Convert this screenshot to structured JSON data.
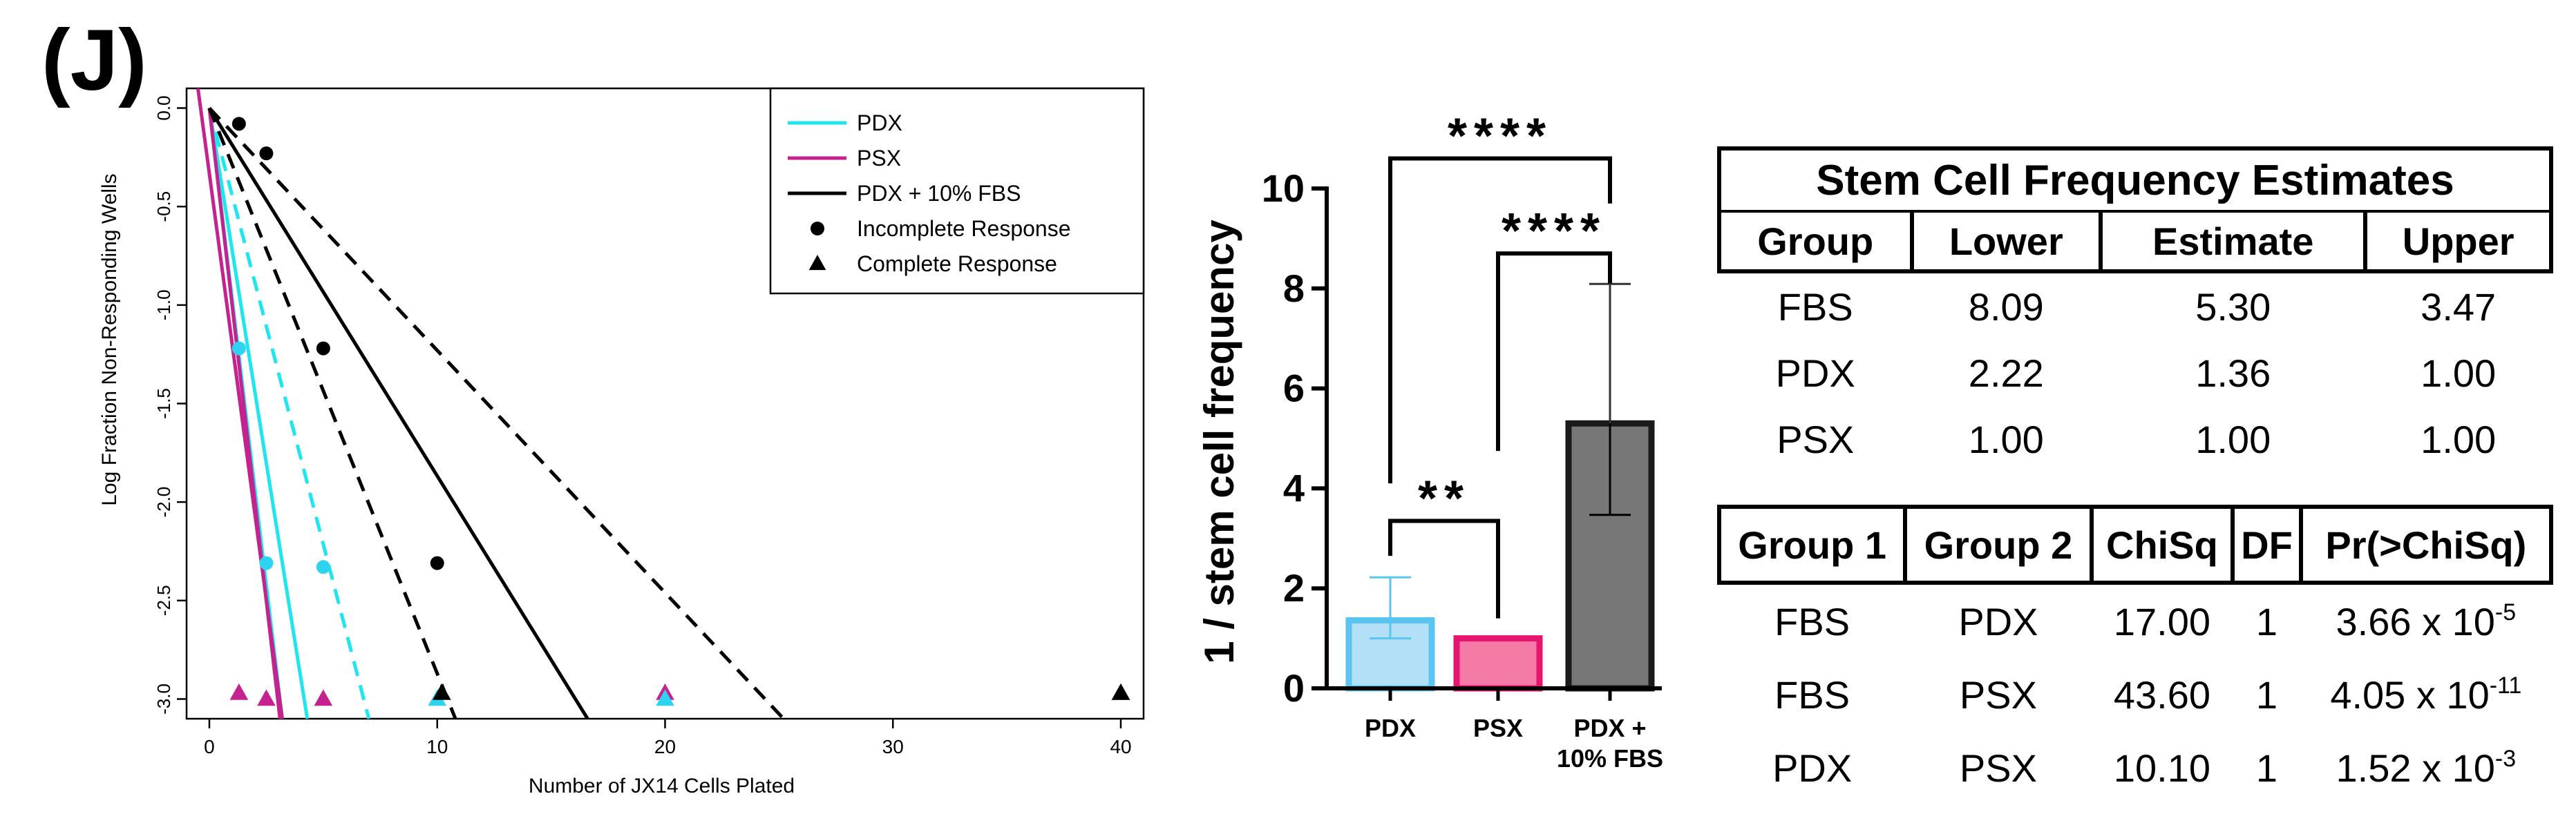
{
  "panel_label": "(J)",
  "chart_data": [
    {
      "type": "scatter",
      "title": "",
      "xlabel": "Number of JX14 Cells Plated",
      "ylabel": "Log Fraction Non-Responding Wells",
      "xlim": [
        -1,
        41
      ],
      "ylim": [
        -3.1,
        0.1
      ],
      "xticks": [
        0,
        10,
        20,
        30,
        40
      ],
      "xtick_labels": [
        "0",
        "10",
        "20",
        "30",
        "40"
      ],
      "yticks": [
        0.0,
        -0.5,
        -1.0,
        -1.5,
        -2.0,
        -2.5,
        -3.0
      ],
      "ytick_labels": [
        "0.0",
        "-0.5",
        "-1.0",
        "-1.5",
        "-2.0",
        "-2.5",
        "-3.0"
      ],
      "legend": [
        {
          "label": "PDX",
          "kind": "line",
          "color": "#1ee5ee"
        },
        {
          "label": "PSX",
          "kind": "line",
          "color": "#c4228f"
        },
        {
          "label": "PDX + 10% FBS",
          "kind": "line",
          "color": "#000000"
        },
        {
          "label": "Incomplete Response",
          "kind": "circle",
          "color": "#000000"
        },
        {
          "label": "Complete Response",
          "kind": "triangle",
          "color": "#000000"
        }
      ],
      "legend_position": "top-right",
      "lines": [
        {
          "name": "PDX estimate",
          "color": "#1ee5ee",
          "style": "solid",
          "x": [
            0,
            4.3
          ],
          "y": [
            0,
            -3.1
          ]
        },
        {
          "name": "PDX bound",
          "color": "#1ee5ee",
          "style": "solid",
          "x": [
            0,
            3.2
          ],
          "y": [
            0,
            -3.1
          ]
        },
        {
          "name": "PDX bound",
          "color": "#1ee5ee",
          "style": "dashed",
          "x": [
            0,
            7.0
          ],
          "y": [
            0,
            -3.1
          ]
        },
        {
          "name": "PSX estimate",
          "color": "#c4228f",
          "style": "solid",
          "x": [
            0,
            3.1
          ],
          "y": [
            0,
            -3.1
          ]
        },
        {
          "name": "PSX bound",
          "color": "#c4228f",
          "style": "solid",
          "x": [
            -0.5,
            3.2
          ],
          "y": [
            0.1,
            -3.1
          ]
        },
        {
          "name": "PDX + 10% FBS estimate",
          "color": "#000000",
          "style": "solid",
          "x": [
            0,
            16.6
          ],
          "y": [
            0,
            -3.1
          ]
        },
        {
          "name": "PDX + 10% FBS bound",
          "color": "#000000",
          "style": "dashed",
          "x": [
            0,
            25.2
          ],
          "y": [
            0,
            -3.1
          ]
        },
        {
          "name": "PDX + 10% FBS bound",
          "color": "#000000",
          "style": "dashed",
          "x": [
            0,
            10.8
          ],
          "y": [
            0,
            -3.1
          ]
        }
      ],
      "points": [
        {
          "series": "PDX + 10% FBS",
          "shape": "circle",
          "color": "#000000",
          "x": 1.3,
          "y": -0.08
        },
        {
          "series": "PDX + 10% FBS",
          "shape": "circle",
          "color": "#000000",
          "x": 2.5,
          "y": -0.23
        },
        {
          "series": "PDX + 10% FBS",
          "shape": "circle",
          "color": "#000000",
          "x": 5.0,
          "y": -1.22
        },
        {
          "series": "PDX + 10% FBS",
          "shape": "circle",
          "color": "#000000",
          "x": 10.0,
          "y": -2.31
        },
        {
          "series": "PDX",
          "shape": "circle",
          "color": "#2ed3f0",
          "x": 1.3,
          "y": -1.22
        },
        {
          "series": "PDX",
          "shape": "circle",
          "color": "#2ed3f0",
          "x": 2.5,
          "y": -2.31
        },
        {
          "series": "PDX",
          "shape": "circle",
          "color": "#2ed3f0",
          "x": 5.0,
          "y": -2.33
        },
        {
          "series": "PSX",
          "shape": "triangle",
          "color": "#c4228f",
          "x": 1.3,
          "y": -2.97
        },
        {
          "series": "PSX",
          "shape": "triangle",
          "color": "#c4228f",
          "x": 2.5,
          "y": -3.0
        },
        {
          "series": "PSX",
          "shape": "triangle",
          "color": "#c4228f",
          "x": 5.0,
          "y": -3.0
        },
        {
          "series": "PDX",
          "shape": "triangle",
          "color": "#2ed3f0",
          "x": 10.0,
          "y": -3.0
        },
        {
          "series": "PDX + 10% FBS",
          "shape": "triangle",
          "color": "#000000",
          "x": 10.2,
          "y": -2.97
        },
        {
          "series": "PSX",
          "shape": "triangle",
          "color": "#c4228f",
          "x": 20.0,
          "y": -2.97
        },
        {
          "series": "PDX",
          "shape": "triangle",
          "color": "#2ed3f0",
          "x": 20.0,
          "y": -3.0
        },
        {
          "series": "PSX",
          "shape": "triangle",
          "color": "#c4228f",
          "x": 40.0,
          "y": -2.97
        },
        {
          "series": "PDX + 10% FBS",
          "shape": "triangle",
          "color": "#000000",
          "x": 40.0,
          "y": -2.97
        }
      ]
    },
    {
      "type": "bar",
      "title": "",
      "xlabel": "",
      "ylabel": "1 / stem cell frequency",
      "ylim": [
        0,
        10
      ],
      "yticks": [
        0,
        2,
        4,
        6,
        8,
        10
      ],
      "ytick_labels": [
        "0",
        "2",
        "4",
        "6",
        "8",
        "10"
      ],
      "categories": [
        "PDX",
        "PSX",
        "PDX + 10% FBS"
      ],
      "category_labels": [
        [
          "PDX"
        ],
        [
          "PSX"
        ],
        [
          "PDX +",
          "10% FBS"
        ]
      ],
      "values": [
        1.36,
        1.0,
        5.3
      ],
      "error_low": [
        1.0,
        1.0,
        3.47
      ],
      "error_high": [
        2.22,
        1.0,
        8.09
      ],
      "fill_colors": [
        "#b3e0f7",
        "#f47ba6",
        "#777777"
      ],
      "edge_colors": [
        "#5bc5f2",
        "#e8156e",
        "#1a1a1a"
      ],
      "significance": [
        {
          "from": 0,
          "to": 2,
          "label": "****",
          "y": 10.6
        },
        {
          "from": 1,
          "to": 2,
          "label": "****",
          "y": 8.7
        },
        {
          "from": 0,
          "to": 1,
          "label": "**",
          "y": 3.35
        }
      ]
    }
  ],
  "stem_cell_table": {
    "title": "Stem Cell Frequency Estimates",
    "headers": [
      "Group",
      "Lower",
      "Estimate",
      "Upper"
    ],
    "rows": [
      [
        "FBS",
        "8.09",
        "5.30",
        "3.47"
      ],
      [
        "PDX",
        "2.22",
        "1.36",
        "1.00"
      ],
      [
        "PSX",
        "1.00",
        "1.00",
        "1.00"
      ]
    ]
  },
  "chisq_table": {
    "headers": [
      "Group 1",
      "Group 2",
      "ChiSq",
      "DF",
      "Pr(>ChiSq)"
    ],
    "rows": [
      {
        "g1": "FBS",
        "g2": "PDX",
        "chisq": "17.00",
        "df": "1",
        "p_base": "3.66 x 10",
        "p_exp": "-5"
      },
      {
        "g1": "FBS",
        "g2": "PSX",
        "chisq": "43.60",
        "df": "1",
        "p_base": "4.05 x 10",
        "p_exp": "-11"
      },
      {
        "g1": "PDX",
        "g2": "PSX",
        "chisq": "10.10",
        "df": "1",
        "p_base": "1.52 x 10",
        "p_exp": "-3"
      }
    ]
  }
}
